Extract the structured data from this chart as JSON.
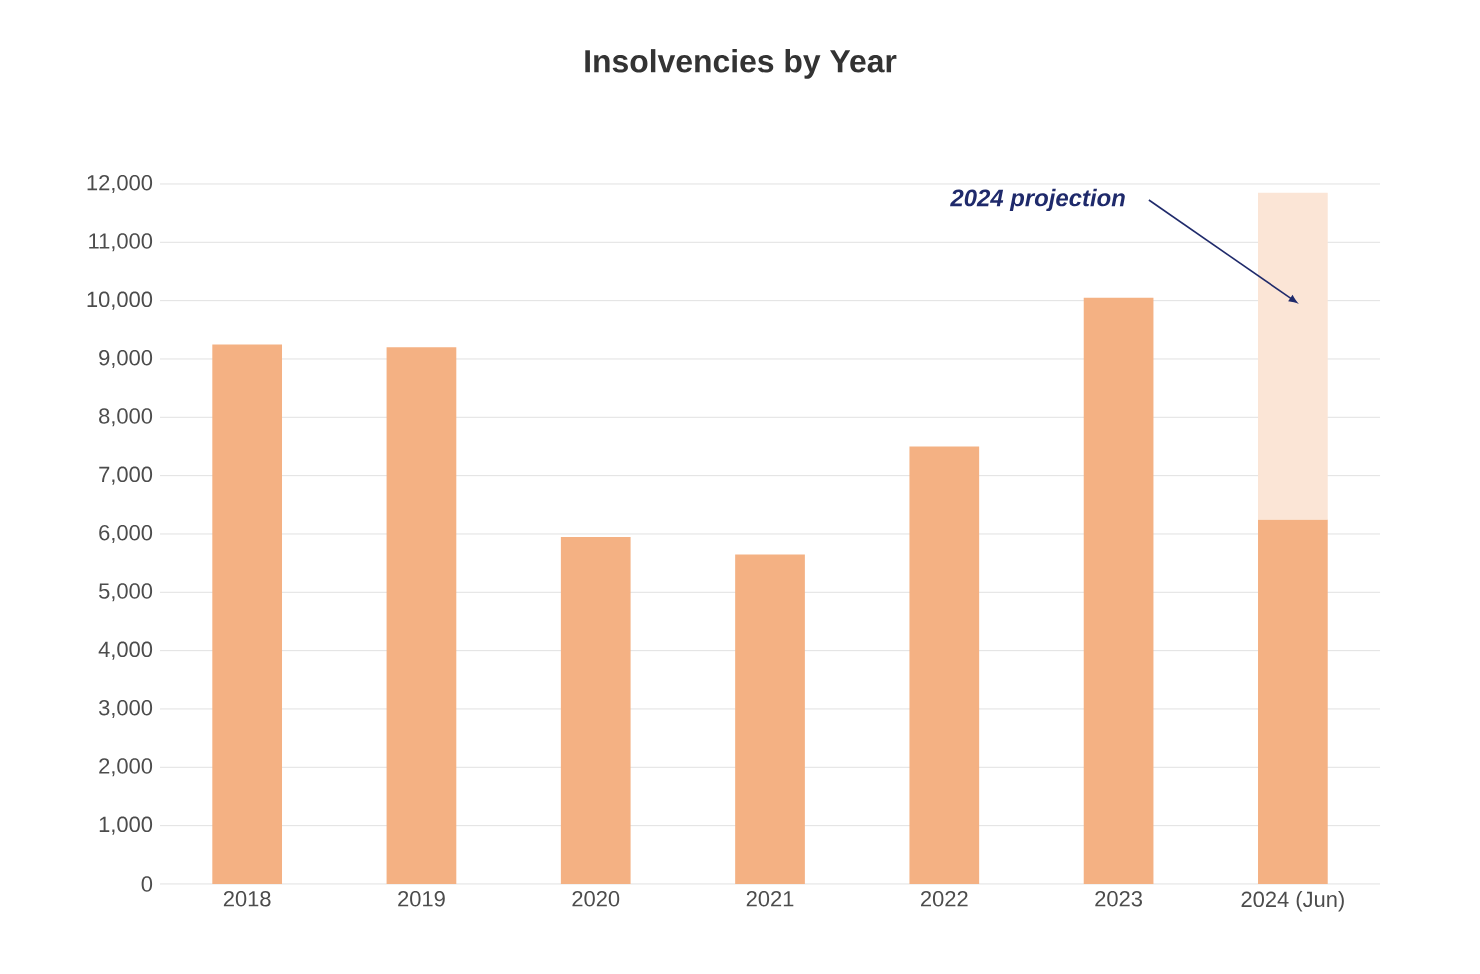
{
  "chart_data": {
    "type": "bar",
    "title": "Insolvencies by Year",
    "categories": [
      "2018",
      "2019",
      "2020",
      "2021",
      "2022",
      "2023",
      "2024 (Jun)"
    ],
    "stacked": true,
    "series": [
      {
        "color": "#f4b183",
        "values": [
          9250,
          9200,
          5950,
          5650,
          7500,
          10050,
          6250
        ]
      },
      {
        "color": "#fbe5d6",
        "values": [
          null,
          null,
          null,
          null,
          null,
          null,
          5600
        ]
      }
    ],
    "ylim": [
      0,
      12000
    ],
    "yticks": [
      {
        "value": 0,
        "label": "0"
      },
      {
        "value": 1000,
        "label": "1,000"
      },
      {
        "value": 2000,
        "label": "2,000"
      },
      {
        "value": 3000,
        "label": "3,000"
      },
      {
        "value": 4000,
        "label": "4,000"
      },
      {
        "value": 5000,
        "label": "5,000"
      },
      {
        "value": 6000,
        "label": "6,000"
      },
      {
        "value": 7000,
        "label": "7,000"
      },
      {
        "value": 8000,
        "label": "8,000"
      },
      {
        "value": 9000,
        "label": "9,000"
      },
      {
        "value": 10000,
        "label": "10,000"
      },
      {
        "value": 11000,
        "label": "11,000"
      },
      {
        "value": 12000,
        "label": "12,000"
      }
    ],
    "grid": "y",
    "annotations": [
      "2024 projection"
    ]
  }
}
